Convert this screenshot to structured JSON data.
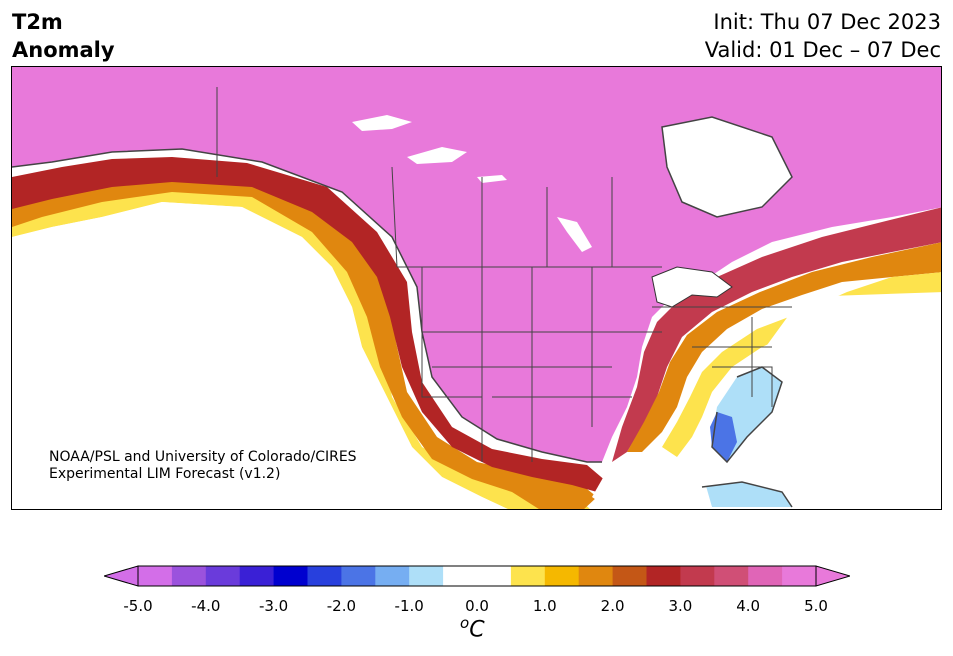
{
  "header": {
    "variable": "T2m",
    "field": "Anomaly",
    "init": "Init: Thu 07 Dec 2023",
    "valid": "Valid: 01 Dec – 07 Dec"
  },
  "credit": {
    "line1": "NOAA/PSL and University of Colorado/CIRES",
    "line2": "Experimental LIM Forecast (v1.2)"
  },
  "colorbar": {
    "ticks": [
      "-5.0",
      "-4.0",
      "-3.0",
      "-2.0",
      "-1.0",
      "0.0",
      "1.0",
      "2.0",
      "3.0",
      "4.0",
      "5.0"
    ],
    "unit_base": "C",
    "unit_sup": "o",
    "colors": [
      "#d36ee8",
      "#9b52dd",
      "#6a3bdb",
      "#3a20d6",
      "#0000cf",
      "#2840dd",
      "#4b74e6",
      "#76aef2",
      "#aedff8",
      "#ffffff",
      "#ffffff",
      "#fde34d",
      "#f5b800",
      "#e0870f",
      "#c45716",
      "#b22525",
      "#c23a4e",
      "#d04f76",
      "#e065b7",
      "#e879da"
    ]
  }
}
